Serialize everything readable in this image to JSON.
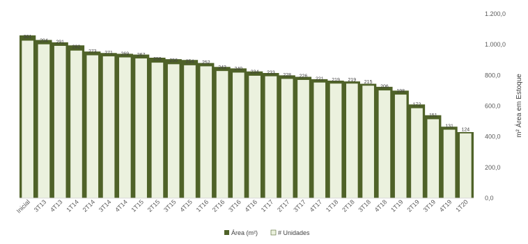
{
  "chart_data": {
    "type": "bar",
    "categories": [
      "Inicial",
      "3T13",
      "4T13",
      "1T14",
      "2T14",
      "3T14",
      "4T14",
      "1T15",
      "2T15",
      "3T15",
      "4T15",
      "1T16",
      "2T16",
      "3T16",
      "4T16",
      "1T17",
      "2T17",
      "3T17",
      "4T17",
      "1T18",
      "2T18",
      "3T18",
      "4T18",
      "1T19",
      "2T19",
      "3T19",
      "4T19",
      "1T20"
    ],
    "series": [
      {
        "name": "Área (m²)",
        "type": "area",
        "axis": "right",
        "color": "#4f6228",
        "values": [
          1060,
          1030,
          1015,
          995,
          955,
          945,
          940,
          935,
          915,
          905,
          900,
          880,
          855,
          845,
          825,
          815,
          800,
          790,
          775,
          765,
          760,
          745,
          725,
          700,
          610,
          540,
          465,
          430
        ]
      },
      {
        "name": "# Unidades",
        "type": "bar",
        "axis": "left",
        "color": "#ebf1de",
        "border": "#4f6228",
        "values": [
          301,
          294,
          291,
          282,
          273,
          271,
          269,
          267,
          259,
          256,
          254,
          252,
          243,
          240,
          234,
          233,
          228,
          226,
          221,
          219,
          219,
          215,
          206,
          198,
          172,
          151,
          131,
          124
        ]
      }
    ],
    "right_axis": {
      "ticks": [
        "0,0",
        "200,0",
        "400,0",
        "600,0",
        "800,0",
        "1.000,0",
        "1.200,0"
      ],
      "ylim": [
        0,
        1200
      ],
      "title": "m² Área em  Estoque"
    },
    "left_axis": {
      "ylim": [
        0,
        351.6
      ],
      "visible": false
    },
    "grid": false,
    "legend": {
      "placement": "bottom",
      "items": [
        {
          "label": "Área (m²)",
          "color": "#4f6228"
        },
        {
          "label": "# Unidades",
          "color": "#ebf1de"
        }
      ]
    }
  }
}
